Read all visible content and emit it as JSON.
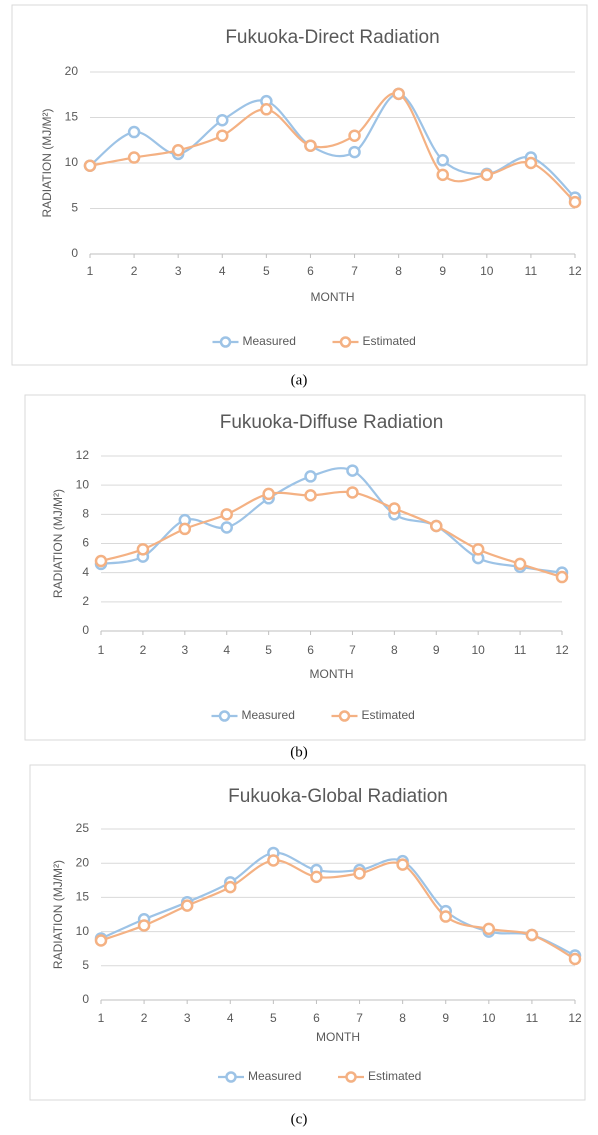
{
  "chart_data": [
    {
      "type": "line",
      "title": "Fukuoka-Direct Radiation",
      "x_label": "MONTH",
      "y_label": "RADIATION (MJ/M²)",
      "caption": "(a)",
      "x": [
        1,
        2,
        3,
        4,
        5,
        6,
        7,
        8,
        9,
        10,
        11,
        12
      ],
      "xlim": [
        1,
        12
      ],
      "xticks": [
        1,
        2,
        3,
        4,
        5,
        6,
        7,
        8,
        9,
        10,
        11,
        12
      ],
      "ylim": [
        0,
        20
      ],
      "yticks": [
        0,
        5,
        10,
        15,
        20
      ],
      "grid": true,
      "legend": "bottom",
      "smooth": true,
      "series": [
        {
          "name": "Measured",
          "color": "#9dc3e6",
          "values": [
            9.7,
            13.4,
            11.0,
            14.7,
            16.8,
            11.9,
            11.2,
            17.6,
            10.3,
            8.8,
            10.6,
            6.2
          ]
        },
        {
          "name": "Estimated",
          "color": "#f4b183",
          "values": [
            9.7,
            10.6,
            11.4,
            13.0,
            15.9,
            11.9,
            13.0,
            17.6,
            8.7,
            8.7,
            10.0,
            5.7
          ]
        }
      ]
    },
    {
      "type": "line",
      "title": "Fukuoka-Diffuse Radiation",
      "x_label": "MONTH",
      "y_label": "RADIATION (MJ/M²)",
      "caption": "(b)",
      "x": [
        1,
        2,
        3,
        4,
        5,
        6,
        7,
        8,
        9,
        10,
        11,
        12
      ],
      "xlim": [
        1,
        12
      ],
      "xticks": [
        1,
        2,
        3,
        4,
        5,
        6,
        7,
        8,
        9,
        10,
        11,
        12
      ],
      "ylim": [
        0,
        12
      ],
      "yticks": [
        0,
        2,
        4,
        6,
        8,
        10,
        12
      ],
      "grid": true,
      "legend": "bottom",
      "smooth": true,
      "series": [
        {
          "name": "Measured",
          "color": "#9dc3e6",
          "values": [
            4.6,
            5.1,
            7.6,
            7.1,
            9.1,
            10.6,
            11.0,
            8.0,
            7.2,
            5.0,
            4.4,
            4.0
          ]
        },
        {
          "name": "Estimated",
          "color": "#f4b183",
          "values": [
            4.8,
            5.6,
            7.0,
            8.0,
            9.4,
            9.3,
            9.5,
            8.4,
            7.2,
            5.6,
            4.6,
            3.7
          ]
        }
      ]
    },
    {
      "type": "line",
      "title": "Fukuoka-Global Radiation",
      "x_label": "MONTH",
      "y_label": "RADIATION (MJ/M²)",
      "caption": "(c)",
      "x": [
        1,
        2,
        3,
        4,
        5,
        6,
        7,
        8,
        9,
        10,
        11,
        12
      ],
      "xlim": [
        1,
        12
      ],
      "xticks": [
        1,
        2,
        3,
        4,
        5,
        6,
        7,
        8,
        9,
        10,
        11,
        12
      ],
      "ylim": [
        0,
        25
      ],
      "yticks": [
        0,
        5,
        10,
        15,
        20,
        25
      ],
      "grid": true,
      "legend": "bottom",
      "smooth": true,
      "series": [
        {
          "name": "Measured",
          "color": "#9dc3e6",
          "values": [
            9.0,
            11.8,
            14.3,
            17.2,
            21.5,
            19.0,
            19.0,
            20.3,
            13.0,
            10.0,
            9.5,
            6.5
          ]
        },
        {
          "name": "Estimated",
          "color": "#f4b183",
          "values": [
            8.7,
            10.9,
            13.8,
            16.5,
            20.4,
            18.0,
            18.5,
            19.8,
            12.2,
            10.4,
            9.5,
            6.0
          ]
        }
      ]
    }
  ]
}
